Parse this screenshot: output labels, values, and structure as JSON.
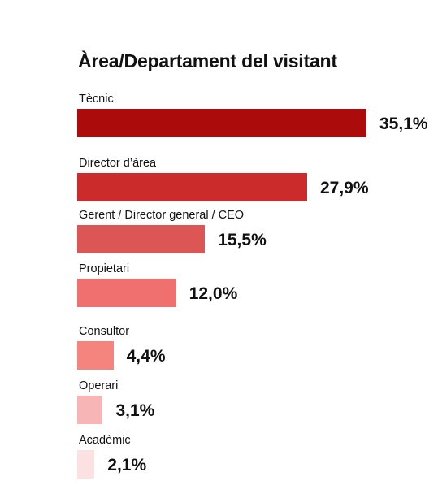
{
  "chart_data": {
    "type": "bar",
    "orientation": "horizontal",
    "title": "Àrea/Departament del visitant",
    "categories": [
      "Tècnic",
      "Director d’àrea",
      "Gerent / Director general / CEO",
      "Propietari",
      "Consultor",
      "Operari",
      "Acadèmic"
    ],
    "values": [
      35.1,
      27.9,
      15.5,
      12.0,
      4.4,
      3.1,
      2.1
    ],
    "value_labels": [
      "35,1%",
      "27,9%",
      "15,5%",
      "12,0%",
      "4,4%",
      "3,1%",
      "2,1%"
    ],
    "colors": [
      "#ac0b0b",
      "#cb2b2b",
      "#dc5656",
      "#f07070",
      "#f5847f",
      "#f8b5b5",
      "#fbe1e1"
    ],
    "unit": "%",
    "grid": false,
    "xaxis_visible": false
  }
}
